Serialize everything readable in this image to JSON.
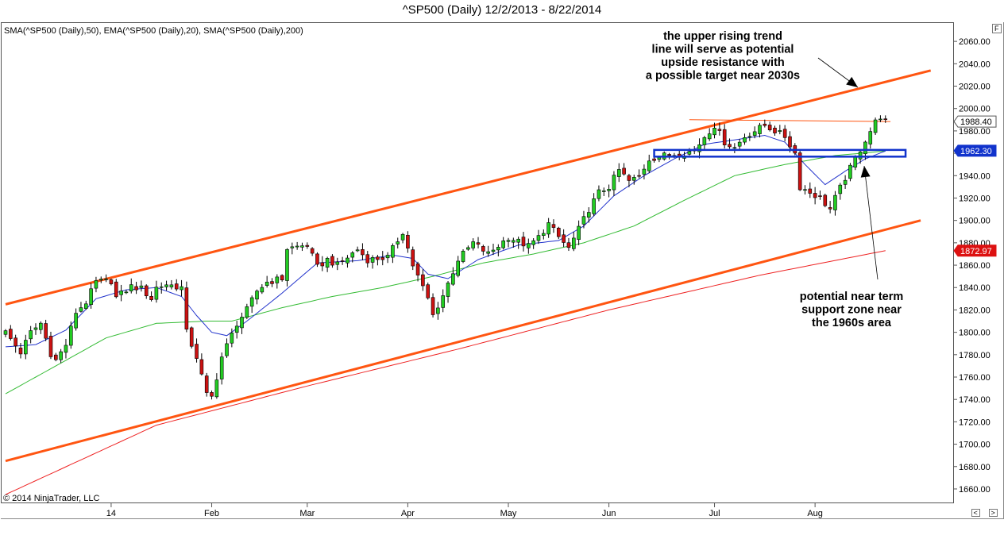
{
  "title": "^SP500 (Daily)  12/2/2013 - 8/22/2014",
  "indicator_label": "SMA(^SP500 (Daily),50), EMA(^SP500 (Daily),20), SMA(^SP500 (Daily),200)",
  "copyright": "© 2014 NinjaTrader, LLC",
  "corner_button": "F",
  "scroll_left": "<",
  "scroll_right": ">",
  "colors": {
    "up": "#22cc22",
    "down": "#cc1111",
    "sma50": "#33bb33",
    "ema20": "#2233cc",
    "sma200": "#ee2222",
    "trend": "#ff5511",
    "zone": "#1133cc"
  },
  "chart_data": {
    "type": "candlestick",
    "title": "^SP500 (Daily)  12/2/2013 - 8/22/2014",
    "ylim": [
      1655,
      2075
    ],
    "yticks": [
      "1660.00",
      "1680.00",
      "1700.00",
      "1720.00",
      "1740.00",
      "1760.00",
      "1780.00",
      "1800.00",
      "1820.00",
      "1840.00",
      "1860.00",
      "1880.00",
      "1900.00",
      "1920.00",
      "1940.00",
      "1960.00",
      "1980.00",
      "2000.00",
      "2020.00",
      "2040.00",
      "2060.00"
    ],
    "xticks": [
      {
        "label": "14",
        "bar": 21
      },
      {
        "label": "Feb",
        "bar": 41
      },
      {
        "label": "Mar",
        "bar": 60
      },
      {
        "label": "Apr",
        "bar": 80
      },
      {
        "label": "May",
        "bar": 100
      },
      {
        "label": "Jun",
        "bar": 120
      },
      {
        "label": "Jul",
        "bar": 141
      },
      {
        "label": "Aug",
        "bar": 161
      }
    ],
    "close_anchors": [
      [
        0,
        1800
      ],
      [
        3,
        1782
      ],
      [
        5,
        1800
      ],
      [
        7,
        1808
      ],
      [
        9,
        1781
      ],
      [
        10,
        1775
      ],
      [
        12,
        1789
      ],
      [
        14,
        1818
      ],
      [
        16,
        1827
      ],
      [
        18,
        1845
      ],
      [
        21,
        1846
      ],
      [
        22,
        1831
      ],
      [
        25,
        1841
      ],
      [
        27,
        1839
      ],
      [
        29,
        1830
      ],
      [
        30,
        1840
      ],
      [
        32,
        1843
      ],
      [
        35,
        1840
      ],
      [
        36,
        1800
      ],
      [
        38,
        1778
      ],
      [
        40,
        1744
      ],
      [
        41,
        1742
      ],
      [
        43,
        1778
      ],
      [
        46,
        1808
      ],
      [
        48,
        1820
      ],
      [
        50,
        1837
      ],
      [
        52,
        1845
      ],
      [
        55,
        1848
      ],
      [
        56,
        1875
      ],
      [
        60,
        1878
      ],
      [
        62,
        1858
      ],
      [
        64,
        1865
      ],
      [
        66,
        1860
      ],
      [
        70,
        1874
      ],
      [
        72,
        1865
      ],
      [
        76,
        1867
      ],
      [
        79,
        1890
      ],
      [
        81,
        1860
      ],
      [
        84,
        1830
      ],
      [
        85,
        1815
      ],
      [
        87,
        1833
      ],
      [
        90,
        1865
      ],
      [
        93,
        1880
      ],
      [
        96,
        1870
      ],
      [
        100,
        1885
      ],
      [
        102,
        1881
      ],
      [
        104,
        1877
      ],
      [
        106,
        1885
      ],
      [
        108,
        1897
      ],
      [
        110,
        1885
      ],
      [
        112,
        1875
      ],
      [
        114,
        1892
      ],
      [
        116,
        1910
      ],
      [
        118,
        1925
      ],
      [
        120,
        1930
      ],
      [
        122,
        1945
      ],
      [
        124,
        1935
      ],
      [
        126,
        1939
      ],
      [
        128,
        1955
      ],
      [
        131,
        1958
      ],
      [
        134,
        1960
      ],
      [
        137,
        1962
      ],
      [
        139,
        1975
      ],
      [
        141,
        1985
      ],
      [
        143,
        1970
      ],
      [
        145,
        1965
      ],
      [
        147,
        1975
      ],
      [
        149,
        1980
      ],
      [
        151,
        1985
      ],
      [
        153,
        1980
      ],
      [
        155,
        1975
      ],
      [
        157,
        1960
      ],
      [
        158,
        1930
      ],
      [
        160,
        1925
      ],
      [
        162,
        1920
      ],
      [
        164,
        1910
      ],
      [
        165,
        1920
      ],
      [
        167,
        1938
      ],
      [
        169,
        1955
      ],
      [
        171,
        1972
      ],
      [
        173,
        1988
      ],
      [
        174,
        1993
      ],
      [
        175,
        1988.4
      ]
    ],
    "overlays": [
      {
        "name": "SMA(^SP500 (Daily),50)",
        "color": "#33bb33",
        "anchors": [
          [
            0,
            1745
          ],
          [
            10,
            1770
          ],
          [
            20,
            1795
          ],
          [
            30,
            1808
          ],
          [
            40,
            1810
          ],
          [
            45,
            1810
          ],
          [
            55,
            1822
          ],
          [
            65,
            1832
          ],
          [
            75,
            1840
          ],
          [
            85,
            1850
          ],
          [
            95,
            1862
          ],
          [
            105,
            1870
          ],
          [
            115,
            1880
          ],
          [
            125,
            1895
          ],
          [
            135,
            1918
          ],
          [
            145,
            1940
          ],
          [
            155,
            1950
          ],
          [
            165,
            1958
          ],
          [
            175,
            1962
          ]
        ]
      },
      {
        "name": "EMA(^SP500 (Daily),20)",
        "color": "#2233cc",
        "anchors": [
          [
            0,
            1787
          ],
          [
            6,
            1789
          ],
          [
            12,
            1802
          ],
          [
            18,
            1830
          ],
          [
            24,
            1838
          ],
          [
            30,
            1840
          ],
          [
            35,
            1832
          ],
          [
            38,
            1815
          ],
          [
            41,
            1800
          ],
          [
            44,
            1797
          ],
          [
            48,
            1810
          ],
          [
            55,
            1835
          ],
          [
            62,
            1862
          ],
          [
            70,
            1864
          ],
          [
            77,
            1869
          ],
          [
            81,
            1866
          ],
          [
            84,
            1852
          ],
          [
            88,
            1848
          ],
          [
            94,
            1865
          ],
          [
            102,
            1878
          ],
          [
            110,
            1882
          ],
          [
            115,
            1895
          ],
          [
            121,
            1922
          ],
          [
            127,
            1940
          ],
          [
            133,
            1955
          ],
          [
            139,
            1968
          ],
          [
            145,
            1972
          ],
          [
            151,
            1976
          ],
          [
            155,
            1970
          ],
          [
            159,
            1950
          ],
          [
            163,
            1932
          ],
          [
            167,
            1944
          ],
          [
            171,
            1955
          ],
          [
            175,
            1962
          ]
        ]
      },
      {
        "name": "SMA(^SP500 (Daily),200)",
        "color": "#ee2222",
        "anchors": [
          [
            0,
            1655
          ],
          [
            30,
            1717
          ],
          [
            60,
            1752
          ],
          [
            90,
            1785
          ],
          [
            120,
            1820
          ],
          [
            150,
            1851
          ],
          [
            175,
            1873
          ]
        ]
      }
    ],
    "price_labels": [
      {
        "text": "1988.40",
        "value": 1988.4,
        "style": "outline"
      },
      {
        "text": "1962.30",
        "value": 1962.3,
        "style": "blue"
      },
      {
        "text": "1872.97",
        "value": 1872.97,
        "style": "red"
      }
    ],
    "trend_lines": [
      {
        "name": "upper rising trend line",
        "from": [
          0,
          1825
        ],
        "to": [
          184,
          2034
        ]
      },
      {
        "name": "lower rising trend line",
        "from": [
          0,
          1685
        ],
        "to": [
          182,
          1900
        ]
      },
      {
        "name": "resistance line",
        "from": [
          136,
          1990
        ],
        "to": [
          176,
          1988.4
        ]
      }
    ],
    "support_zone": {
      "from_bar": 129,
      "to_bar": 179,
      "low": 1957,
      "high": 1963
    },
    "annotations": [
      {
        "lines": [
          "the upper rising trend",
          "line will serve as potential",
          "upside resistance with",
          "a possible target near 2030s"
        ]
      },
      {
        "lines": [
          "potential near term",
          "support zone near",
          "the 1960s area"
        ]
      }
    ]
  }
}
